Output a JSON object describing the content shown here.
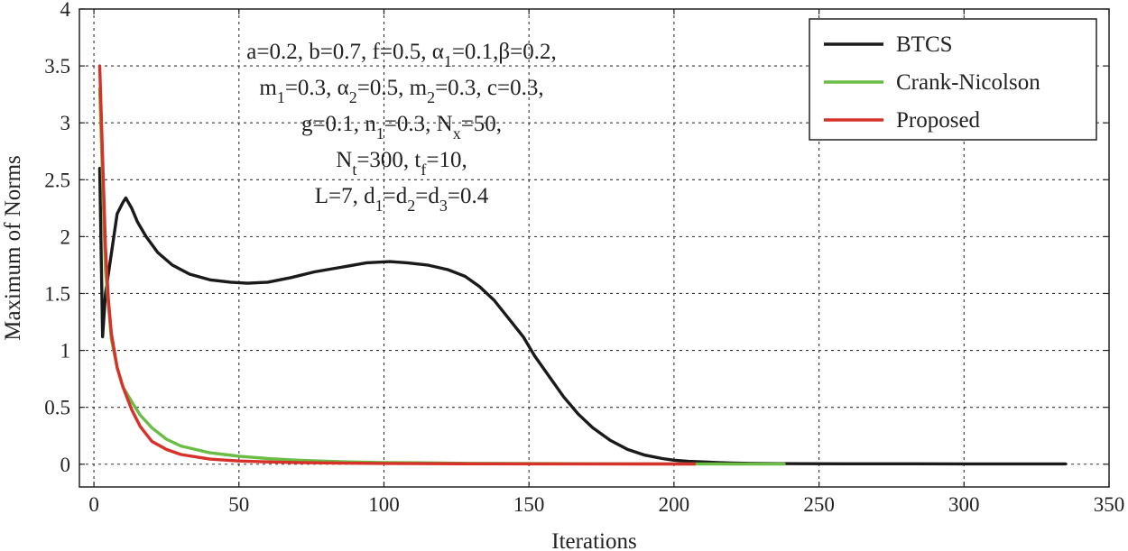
{
  "chart_data": {
    "type": "line",
    "xlabel": "Iterations",
    "ylabel": "Maximum of Norms",
    "xlim": [
      -5,
      350
    ],
    "ylim": [
      -0.2,
      4
    ],
    "xticks": [
      0,
      50,
      100,
      150,
      200,
      250,
      300,
      350
    ],
    "yticks": [
      0,
      0.5,
      1,
      1.5,
      2,
      2.5,
      3,
      3.5,
      4
    ],
    "xtick_labels": [
      "0",
      "50",
      "100",
      "150",
      "200",
      "250",
      "300",
      "350"
    ],
    "ytick_labels": [
      "0",
      "0.5",
      "1",
      "1.5",
      "2",
      "2.5",
      "3",
      "3.5",
      "4"
    ],
    "grid": true,
    "legend_position": "top-right",
    "annotation": [
      {
        "parts": [
          {
            "t": "a=0.2, b=0.7, f=0.5, α"
          },
          {
            "t": "1",
            "sub": true
          },
          {
            "t": "=0.1,β=0.2,"
          }
        ]
      },
      {
        "parts": [
          {
            "t": "m"
          },
          {
            "t": "1",
            "sub": true
          },
          {
            "t": "=0.3, α"
          },
          {
            "t": "2",
            "sub": true
          },
          {
            "t": "=0.5, m"
          },
          {
            "t": "2",
            "sub": true
          },
          {
            "t": "=0.3, c=0.3,"
          }
        ]
      },
      {
        "parts": [
          {
            "t": "g=0.1, n"
          },
          {
            "t": "1",
            "sub": true
          },
          {
            "t": "=0.3, N"
          },
          {
            "t": "x",
            "sub": true
          },
          {
            "t": "=50,"
          }
        ]
      },
      {
        "parts": [
          {
            "t": "N"
          },
          {
            "t": "t",
            "sub": true
          },
          {
            "t": "=300, t"
          },
          {
            "t": "f",
            "sub": true
          },
          {
            "t": "=10,"
          }
        ]
      },
      {
        "parts": [
          {
            "t": "L=7, d"
          },
          {
            "t": "1",
            "sub": true
          },
          {
            "t": "=d"
          },
          {
            "t": "2",
            "sub": true
          },
          {
            "t": "=d"
          },
          {
            "t": "3",
            "sub": true
          },
          {
            "t": "=0.4"
          }
        ]
      }
    ],
    "series": [
      {
        "name": "BTCS",
        "color": "#1a1a1a",
        "x": [
          2,
          3,
          4,
          6,
          8,
          10,
          11,
          13,
          15,
          18,
          22,
          27,
          33,
          40,
          47,
          53,
          60,
          68,
          76,
          85,
          94,
          102,
          108,
          115,
          122,
          128,
          133,
          138,
          143,
          148,
          152,
          157,
          162,
          167,
          172,
          178,
          184,
          190,
          196,
          200,
          205,
          210,
          215,
          220,
          226,
          235,
          260,
          300,
          335
        ],
        "y": [
          2.6,
          1.12,
          1.5,
          1.85,
          2.2,
          2.3,
          2.34,
          2.25,
          2.13,
          2.0,
          1.86,
          1.75,
          1.67,
          1.62,
          1.6,
          1.59,
          1.6,
          1.64,
          1.69,
          1.73,
          1.77,
          1.78,
          1.77,
          1.75,
          1.71,
          1.65,
          1.56,
          1.44,
          1.28,
          1.12,
          0.95,
          0.77,
          0.59,
          0.44,
          0.32,
          0.21,
          0.13,
          0.08,
          0.05,
          0.035,
          0.025,
          0.02,
          0.015,
          0.01,
          0.008,
          0.005,
          0.004,
          0.003,
          0.003
        ]
      },
      {
        "name": "Crank-Nicolson",
        "color": "#69bd45",
        "x": [
          2,
          3,
          4,
          6,
          8,
          10,
          13,
          16,
          20,
          25,
          30,
          40,
          50,
          60,
          70,
          85,
          100,
          112,
          130,
          160,
          200,
          220,
          238
        ],
        "y": [
          3.3,
          2.5,
          1.7,
          1.1,
          0.85,
          0.68,
          0.55,
          0.43,
          0.32,
          0.22,
          0.16,
          0.1,
          0.07,
          0.05,
          0.035,
          0.022,
          0.015,
          0.012,
          0.008,
          0.005,
          0.003,
          0.002,
          0.002
        ]
      },
      {
        "name": "Proposed",
        "color": "#d7312a",
        "x": [
          2,
          3,
          4,
          5,
          6,
          8,
          10,
          13,
          16,
          20,
          25,
          30,
          40,
          50,
          60,
          70,
          85,
          100,
          130,
          160,
          190,
          207
        ],
        "y": [
          3.5,
          2.7,
          1.9,
          1.45,
          1.15,
          0.85,
          0.68,
          0.48,
          0.33,
          0.2,
          0.13,
          0.085,
          0.045,
          0.028,
          0.02,
          0.015,
          0.01,
          0.007,
          0.004,
          0.003,
          0.002,
          0.002
        ]
      }
    ]
  }
}
